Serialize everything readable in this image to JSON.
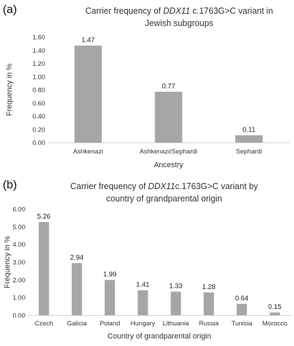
{
  "chart_data": [
    {
      "type": "bar",
      "panel": "(a)",
      "title_parts": [
        {
          "text": "Carrier frequency of ",
          "italic": false
        },
        {
          "text": "DDX11",
          "italic": true
        },
        {
          "text": " c.1763G>C variant in",
          "italic": false
        }
      ],
      "title_line2": "Jewish subgroups",
      "categories": [
        "Ashkenazi",
        "Ashkenazi/Sephardi",
        "Sephardi"
      ],
      "values": [
        1.47,
        0.77,
        0.11
      ],
      "value_labels": [
        "1.47",
        "0.77",
        "0.11"
      ],
      "xlabel": "Ancestry",
      "ylabel": "Frequency in %",
      "ylim": [
        0,
        1.6
      ],
      "yticks": [
        "0.00",
        "0.20",
        "0.40",
        "0.60",
        "0.80",
        "1.00",
        "1.20",
        "1.40",
        "1.60"
      ],
      "grid": false,
      "color": "#a6a6a6"
    },
    {
      "type": "bar",
      "panel": "(b)",
      "title_parts": [
        {
          "text": "Carrier frequency of ",
          "italic": false
        },
        {
          "text": "DDX11",
          "italic": true
        },
        {
          "text": "c.1763G>C variant by",
          "italic": false
        }
      ],
      "title_line2": "country of grandparental origin",
      "categories": [
        "Czech",
        "Galicia",
        "Poland",
        "Hungary",
        "Lithuania",
        "Russia",
        "Tunisia",
        "Morocco"
      ],
      "values": [
        5.26,
        2.94,
        1.99,
        1.41,
        1.33,
        1.28,
        0.64,
        0.15
      ],
      "value_labels": [
        "5.26",
        "2.94",
        "1.99",
        "1.41",
        "1.33",
        "1.28",
        "0.64",
        "0.15"
      ],
      "xlabel": "Country of grandparental origin",
      "ylabel": "Frequency in %",
      "ylim": [
        0,
        6
      ],
      "yticks": [
        "0.00",
        "1.00",
        "2.00",
        "3.00",
        "4.00",
        "5.00",
        "6.00"
      ],
      "grid": false,
      "color": "#a6a6a6"
    }
  ]
}
